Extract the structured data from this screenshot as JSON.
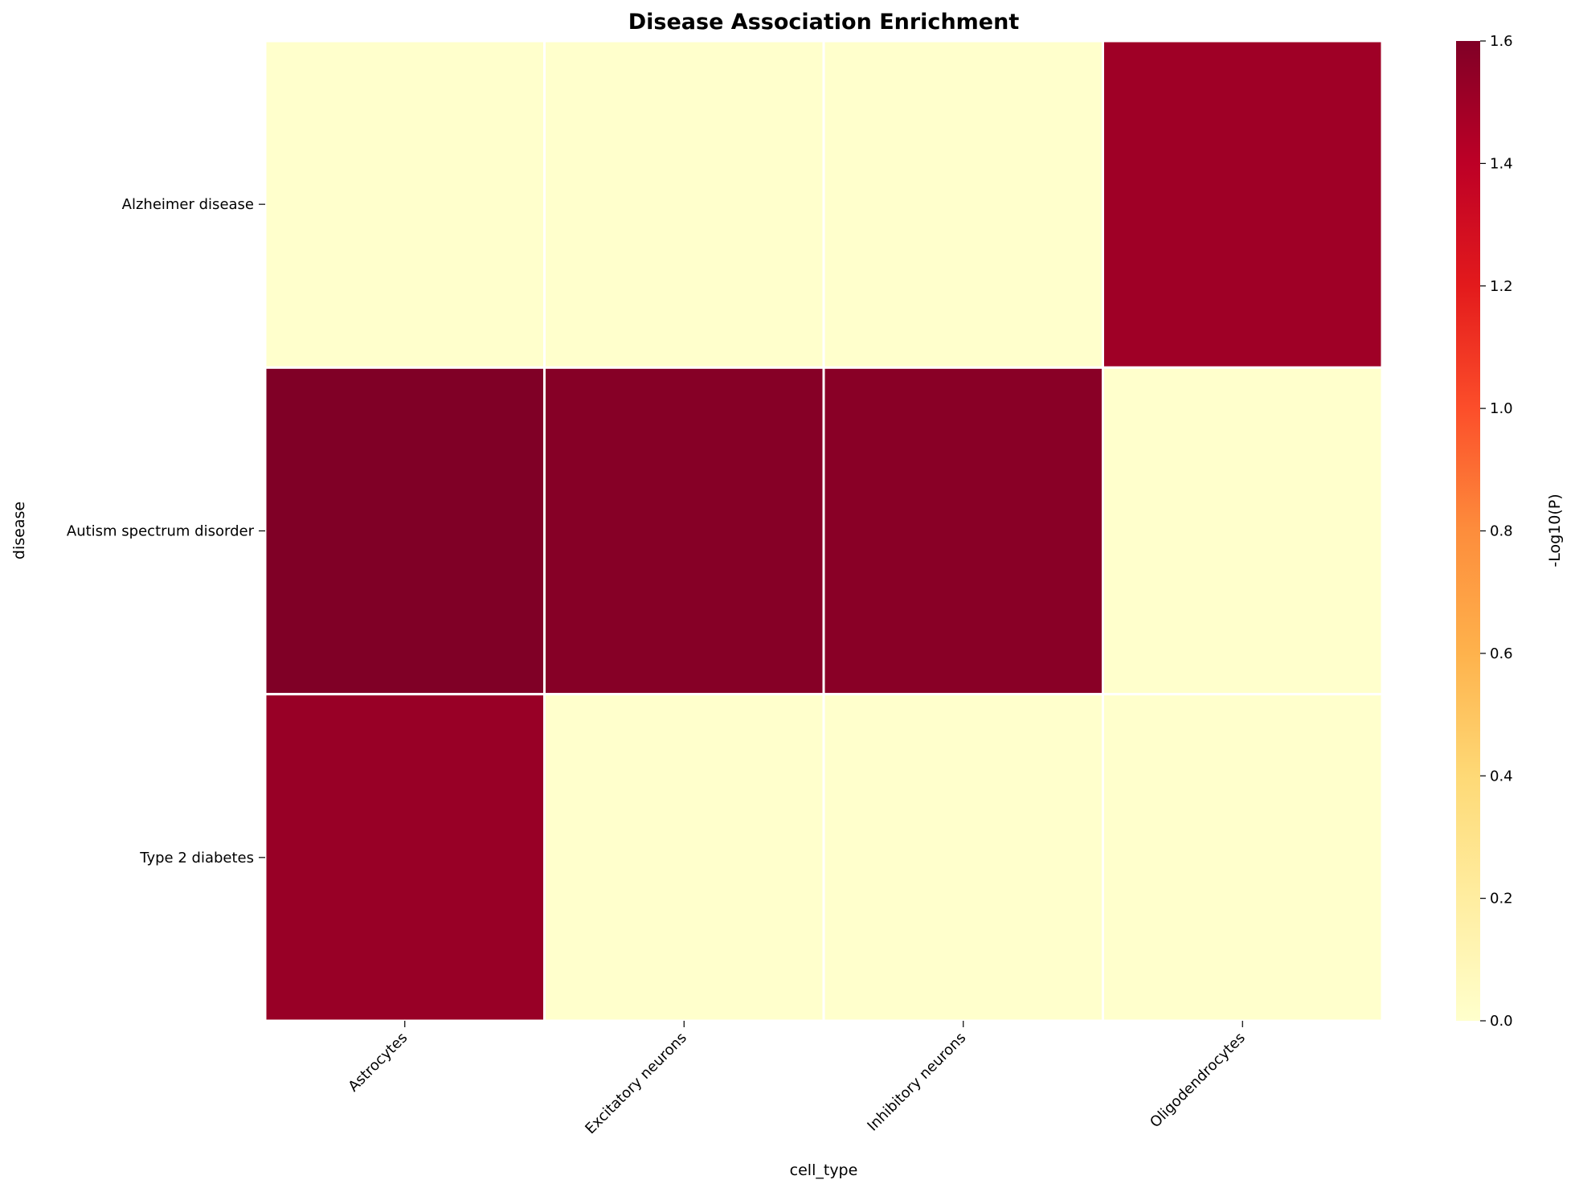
{
  "chart_data": {
    "type": "heatmap",
    "title": "Disease Association Enrichment",
    "xlabel": "cell_type",
    "ylabel": "disease",
    "x_categories": [
      "Astrocytes",
      "Excitatory neurons",
      "Inhibitory neurons",
      "Oligodendrocytes"
    ],
    "y_categories": [
      "Alzheimer disease",
      "Autism spectrum disorder",
      "Type 2 diabetes"
    ],
    "values": [
      [
        0.0,
        0.0,
        0.0,
        1.5
      ],
      [
        1.6,
        1.58,
        1.57,
        0.0
      ],
      [
        1.52,
        0.0,
        0.0,
        0.0
      ]
    ],
    "colorbar": {
      "label": "-Log10(P)",
      "range": [
        0.0,
        1.6
      ],
      "ticks": [
        "0.0",
        "0.2",
        "0.4",
        "0.6",
        "0.8",
        "1.0",
        "1.2",
        "1.4",
        "1.6"
      ],
      "colormap": "YlOrRd",
      "colors": [
        "#ffffcc",
        "#ffeda0",
        "#fed976",
        "#feb24c",
        "#fd8d3c",
        "#fc4e2a",
        "#e31a1c",
        "#bd0026",
        "#800026"
      ]
    },
    "grid_line_color": "#ffffff"
  }
}
